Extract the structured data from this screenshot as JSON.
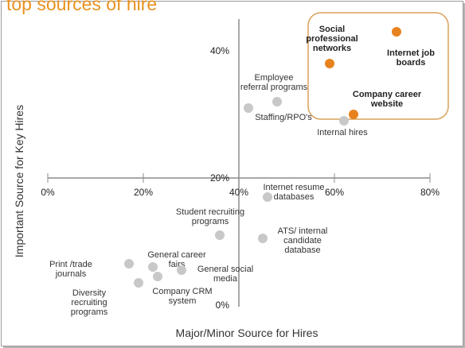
{
  "header": {
    "title": "top sources of hire"
  },
  "colors": {
    "accent": "#E8921F",
    "point_gray": "#C8C8C8",
    "highlight_orange": "#E8821E",
    "highlight_box": "#D9A15A",
    "axis": "#8C8C8C"
  },
  "chart_data": {
    "type": "scatter",
    "title": "",
    "xlabel": "Major/Minor Source for Hires",
    "ylabel": "Important Source for Key Hires",
    "xlim": [
      0,
      80
    ],
    "ylim": [
      0,
      45
    ],
    "x_ticks": [
      "0%",
      "20%",
      "40%",
      "60%",
      "80%"
    ],
    "y_ticks": [
      "0%",
      "20%",
      "40%"
    ],
    "grid": false,
    "legend": "none",
    "highlight_group": "Social professional networks, Internet job boards, Company career website",
    "points": [
      {
        "label": "Social professional networks",
        "x": 59,
        "y": 38,
        "highlight": true
      },
      {
        "label": "Internet job boards",
        "x": 73,
        "y": 43,
        "highlight": true
      },
      {
        "label": "Company career website",
        "x": 64,
        "y": 30,
        "highlight": true
      },
      {
        "label": "Employee referral programs",
        "x": 48,
        "y": 32,
        "highlight": false
      },
      {
        "label": "Staffing/RPO's",
        "x": 42,
        "y": 31,
        "highlight": false
      },
      {
        "label": "Internal hires",
        "x": 62,
        "y": 29,
        "highlight": false
      },
      {
        "label": "Internet resume databases",
        "x": 46,
        "y": 17,
        "highlight": false
      },
      {
        "label": "Student recruiting programs",
        "x": 36,
        "y": 11,
        "highlight": false
      },
      {
        "label": "ATS/ internal candidate database",
        "x": 45,
        "y": 10.5,
        "highlight": false
      },
      {
        "label": "Print /trade journals",
        "x": 17,
        "y": 6.5,
        "highlight": false
      },
      {
        "label": "General career fairs",
        "x": 22,
        "y": 6,
        "highlight": false
      },
      {
        "label": "General social media",
        "x": 28,
        "y": 5.5,
        "highlight": false
      },
      {
        "label": "Diversity recruiting programs",
        "x": 19,
        "y": 3.5,
        "highlight": false
      },
      {
        "label": "Company CRM system",
        "x": 23,
        "y": 4.5,
        "highlight": false
      }
    ],
    "label_lines": [
      [
        "Social",
        "professional",
        "networks"
      ],
      [
        "Internet job",
        "boards"
      ],
      [
        "Company career",
        "website"
      ],
      [
        "Employee",
        "referral programs"
      ],
      [
        "Staffing/RPO's"
      ],
      [
        "Internal  hires"
      ],
      [
        "Internet resume",
        "databases"
      ],
      [
        "Student recruiting",
        "programs"
      ],
      [
        "ATS/ internal",
        "candidate",
        "database"
      ],
      [
        "Print /trade",
        "journals"
      ],
      [
        "General career",
        "fairs"
      ],
      [
        "General social",
        "media"
      ],
      [
        "Diversity",
        "recruiting",
        "programs"
      ],
      [
        "Company CRM",
        "system"
      ]
    ]
  }
}
